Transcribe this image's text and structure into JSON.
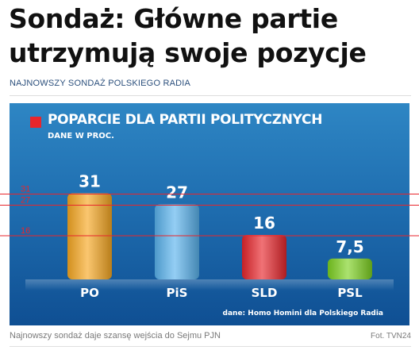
{
  "article": {
    "headline": "Sondaż: Główne partie utrzymują swoje pozycje",
    "kicker": "NAJNOWSZY SONDAŻ POLSKIEGO RADIA",
    "caption": "Najnowszy sondaż daje szansę wejścia do Sejmu PJN",
    "credit": "Fot. TVN24"
  },
  "chart_data": {
    "type": "bar",
    "title": "POPARCIE DLA PARTII POLITYCZNYCH",
    "subtitle": "DANE W PROC.",
    "source": "dane: Homo Homini dla Polskiego Radia",
    "categories": [
      "PO",
      "PiS",
      "SLD",
      "PSL"
    ],
    "values": [
      31,
      27,
      16,
      7.5
    ],
    "value_labels": [
      "31",
      "27",
      "16",
      "7,5"
    ],
    "colors": [
      "#f7a822",
      "#5bb4ee",
      "#e8262c",
      "#7ed321"
    ],
    "ylim": [
      0,
      40
    ],
    "grid": false,
    "reference_lines": {
      "values": [
        31,
        27,
        16
      ],
      "labels": [
        "31",
        "27",
        "16"
      ],
      "color": "#e8262c"
    }
  }
}
